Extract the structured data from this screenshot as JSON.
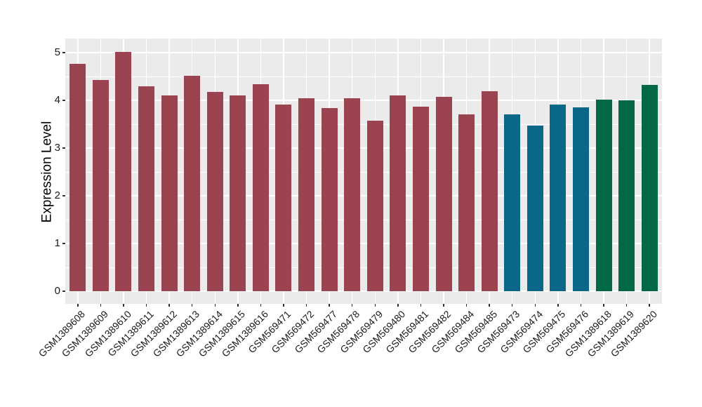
{
  "figure": {
    "background": "#FFFFFF",
    "panel_background": "#EBEBEB",
    "grid_color": "#FFFFFF",
    "tick_mark_color": "#333333",
    "axis_text_color": "#1A1A1A",
    "axis_title_color": "#000000"
  },
  "chart_data": {
    "type": "bar",
    "title": "",
    "xlabel": "",
    "ylabel": "Expression Level",
    "ylim": [
      0,
      5.3
    ],
    "yticks": [
      0,
      1,
      2,
      3,
      4,
      5
    ],
    "grid": true,
    "legend_position": "none",
    "categories": [
      "GSM1389608",
      "GSM1389609",
      "GSM1389610",
      "GSM1389611",
      "GSM1389612",
      "GSM1389613",
      "GSM1389614",
      "GSM1389615",
      "GSM1389616",
      "GSM569471",
      "GSM569472",
      "GSM569477",
      "GSM569478",
      "GSM569479",
      "GSM569480",
      "GSM569481",
      "GSM569482",
      "GSM569484",
      "GSM569485",
      "GSM569473",
      "GSM569474",
      "GSM569475",
      "GSM569476",
      "GSM1389618",
      "GSM1389619",
      "GSM1389620"
    ],
    "values": [
      4.76,
      4.42,
      5.01,
      4.29,
      4.11,
      4.52,
      4.18,
      4.11,
      4.34,
      3.91,
      4.05,
      3.84,
      4.05,
      3.57,
      4.1,
      3.87,
      4.07,
      3.7,
      4.19,
      3.7,
      3.47,
      3.91,
      3.86,
      4.01,
      4.0,
      4.33
    ],
    "groups": [
      "group1",
      "group1",
      "group1",
      "group1",
      "group1",
      "group1",
      "group1",
      "group1",
      "group1",
      "group1",
      "group1",
      "group1",
      "group1",
      "group1",
      "group1",
      "group1",
      "group1",
      "group1",
      "group1",
      "group2",
      "group2",
      "group2",
      "group2",
      "group3",
      "group3",
      "group3"
    ],
    "group_colors": {
      "group1": "#9C4351",
      "group2": "#0A6787",
      "group3": "#016948"
    }
  }
}
